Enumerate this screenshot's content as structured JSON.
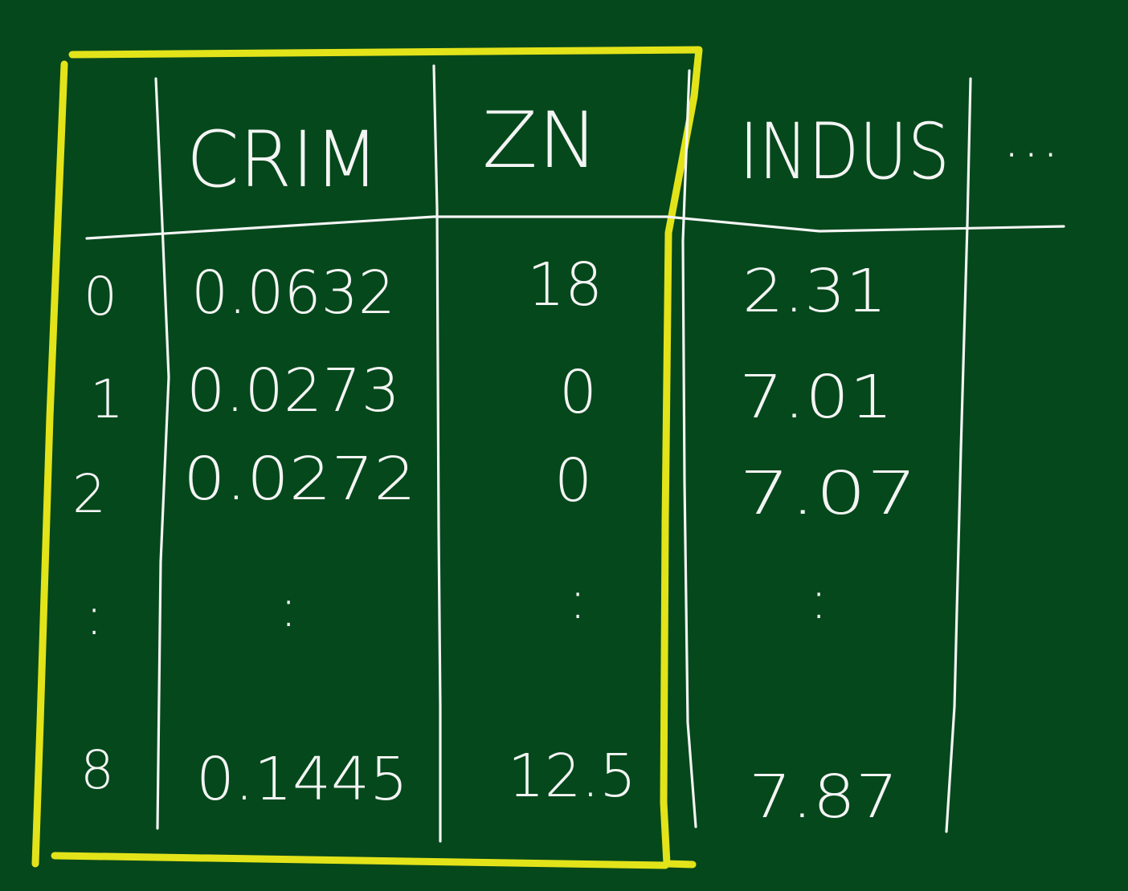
{
  "table": {
    "headers": [
      "CRIM",
      "ZN",
      "INDUS"
    ],
    "more_columns": "...",
    "rows": [
      {
        "index": "0",
        "crim": "0.0632",
        "zn": "18",
        "indus": "2.31"
      },
      {
        "index": "1",
        "crim": "0.0273",
        "zn": "0",
        "indus": "7.01"
      },
      {
        "index": "2",
        "crim": "0.0272",
        "zn": "0",
        "indus": "7.07"
      },
      {
        "index": "8",
        "crim": "0.1445",
        "zn": "12.5",
        "indus": "7.87"
      }
    ],
    "ellipsis": ":"
  },
  "colors": {
    "board": "#04481b",
    "chalk": "#f4f4f4",
    "highlight": "#e3e31a"
  }
}
